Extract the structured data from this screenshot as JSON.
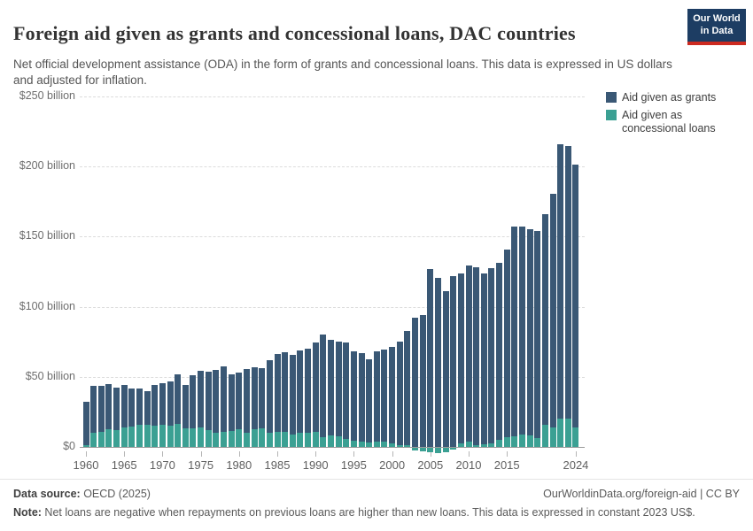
{
  "header": {
    "title": "Foreign aid given as grants and concessional loans, DAC countries",
    "subtitle": "Net official development assistance (ODA) in the form of grants and concessional loans. This data is expressed in US dollars and adjusted for inflation.",
    "logo": {
      "line1": "Our World",
      "line2": "in Data",
      "bg_color": "#1d3d63",
      "stripe_color": "#cc2a20"
    }
  },
  "legend": {
    "items": [
      {
        "label": "Aid given as grants",
        "color": "#3a5875"
      },
      {
        "label": "Aid given as concessional loans",
        "color": "#3ba093"
      }
    ]
  },
  "y_axis": {
    "ticks": [
      {
        "label": "$250 billion",
        "value": 250
      },
      {
        "label": "$200 billion",
        "value": 200
      },
      {
        "label": "$150 billion",
        "value": 150
      },
      {
        "label": "$100 billion",
        "value": 100
      },
      {
        "label": "$50 billion",
        "value": 50
      },
      {
        "label": "$0",
        "value": 0
      }
    ]
  },
  "x_axis": {
    "ticks": [
      1960,
      1965,
      1970,
      1975,
      1980,
      1985,
      1990,
      1995,
      2000,
      2005,
      2010,
      2015,
      2024
    ]
  },
  "chart_data": {
    "type": "bar",
    "stacked": true,
    "title": "Foreign aid given as grants and concessional loans, DAC countries",
    "unit": "US$ billion, constant 2023 prices",
    "ylim": [
      0,
      250
    ],
    "grid": true,
    "legend_position": "top-right",
    "x": [
      1960,
      1961,
      1962,
      1963,
      1964,
      1965,
      1966,
      1967,
      1968,
      1969,
      1970,
      1971,
      1972,
      1973,
      1974,
      1975,
      1976,
      1977,
      1978,
      1979,
      1980,
      1981,
      1982,
      1983,
      1984,
      1985,
      1986,
      1987,
      1988,
      1989,
      1990,
      1991,
      1992,
      1993,
      1994,
      1995,
      1996,
      1997,
      1998,
      1999,
      2000,
      2001,
      2002,
      2003,
      2004,
      2005,
      2006,
      2007,
      2008,
      2009,
      2010,
      2011,
      2012,
      2013,
      2014,
      2015,
      2016,
      2017,
      2018,
      2019,
      2020,
      2021,
      2022,
      2023,
      2024
    ],
    "series": [
      {
        "name": "Aid given as concessional loans",
        "color": "#3ba093",
        "values": [
          1.5,
          10,
          10.5,
          12.5,
          12,
          14,
          14.5,
          15.5,
          15.5,
          15,
          16,
          15,
          16.5,
          13,
          13.5,
          14,
          12,
          10,
          11,
          11.5,
          12.5,
          10,
          12.5,
          13,
          10,
          10.5,
          10.5,
          9,
          10,
          10,
          10.5,
          7,
          8,
          7.5,
          6,
          4.5,
          3.5,
          3,
          4,
          3.5,
          2.5,
          1.5,
          1,
          -2.5,
          -3,
          -3.5,
          -4.5,
          -3.5,
          -2,
          2.5,
          3.5,
          1.5,
          2,
          2.5,
          5,
          7,
          7.5,
          9,
          8,
          6.5,
          16,
          14,
          20,
          20.5,
          14
        ]
      },
      {
        "name": "Aid given as grants",
        "color": "#3a5875",
        "values": [
          30.5,
          33.5,
          33,
          32.5,
          30,
          30,
          27.5,
          26,
          24.5,
          29,
          29.5,
          32,
          35,
          31.5,
          37.5,
          40,
          41.5,
          45,
          46.5,
          40.5,
          40.5,
          45.5,
          44.5,
          43.5,
          52,
          56,
          57,
          56.5,
          59,
          60,
          64,
          73.5,
          68.5,
          67.5,
          68.5,
          63.5,
          63.5,
          59.5,
          64,
          66,
          69,
          73.5,
          81.5,
          92,
          94,
          127,
          120.5,
          111,
          122,
          121,
          126,
          126.5,
          121.5,
          125,
          126.5,
          133.5,
          150,
          148.5,
          147,
          147.5,
          150,
          166.5,
          196,
          194,
          187.5
        ]
      }
    ]
  },
  "footer": {
    "source_label": "Data source:",
    "source_value": " OECD (2025)",
    "link": "OurWorldinData.org/foreign-aid | CC BY",
    "note_label": "Note:",
    "note_value": " Net loans are negative when repayments on previous loans are higher than new loans. This data is expressed in constant 2023 US$."
  }
}
